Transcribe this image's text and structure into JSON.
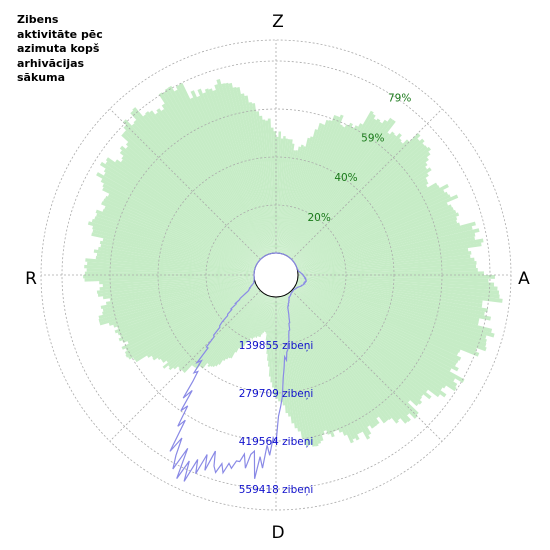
{
  "title": "Zibens\naktivitāte pēc\nazimuta kopš\narhivācijas\nsākuma",
  "directions": {
    "north": "Z",
    "east": "A",
    "south": "D",
    "west": "R"
  },
  "colors": {
    "activity_fill": "#c6ecc6",
    "count_line": "#8a8ae6",
    "grid": "#aaaaaa",
    "percent_labels": "#1a7a1a",
    "count_labels": "#1010cc"
  },
  "chart_data": {
    "type": "polar-area",
    "title": "Zibens aktivitāte pēc azimuta kopš arhivācijas sākuma",
    "rings": [
      {
        "percent_label": "20%",
        "count_label": "139855 zibeņi"
      },
      {
        "percent_label": "40%",
        "count_label": "279709 zibeņi"
      },
      {
        "percent_label": "59%",
        "count_label": "419564 zibeņi"
      },
      {
        "percent_label": "79%",
        "count_label": "559418 zibeņi"
      }
    ],
    "activity_percent_by_azimuth": {
      "azimuth_deg": [
        0,
        10,
        20,
        30,
        40,
        50,
        60,
        70,
        80,
        90,
        100,
        110,
        120,
        130,
        140,
        150,
        160,
        170,
        180,
        190,
        200,
        210,
        220,
        230,
        240,
        250,
        260,
        270,
        280,
        290,
        300,
        310,
        320,
        330,
        340,
        350
      ],
      "percent": [
        48,
        44,
        58,
        65,
        68,
        72,
        66,
        72,
        74,
        77,
        82,
        78,
        75,
        72,
        68,
        65,
        62,
        60,
        40,
        15,
        18,
        30,
        42,
        48,
        58,
        62,
        63,
        68,
        67,
        68,
        72,
        74,
        77,
        76,
        73,
        68
      ]
    },
    "lightning_count_by_azimuth": {
      "azimuth_deg": [
        0,
        10,
        20,
        30,
        40,
        50,
        60,
        70,
        80,
        90,
        100,
        110,
        120,
        130,
        140,
        150,
        160,
        170,
        175,
        180,
        185,
        190,
        195,
        200,
        205,
        210,
        215,
        220,
        225,
        230,
        240,
        250,
        260,
        270,
        280,
        290,
        300,
        310,
        320,
        330,
        340,
        350
      ],
      "count": [
        0,
        0,
        0,
        0,
        0,
        0,
        0,
        0,
        2000,
        15000,
        25000,
        20000,
        8000,
        3000,
        5000,
        12000,
        35000,
        140000,
        200000,
        400000,
        500000,
        480000,
        520000,
        520000,
        560000,
        520000,
        400000,
        300000,
        200000,
        120000,
        30000,
        5000,
        0,
        0,
        0,
        0,
        0,
        0,
        0,
        0,
        0,
        0
      ]
    }
  }
}
